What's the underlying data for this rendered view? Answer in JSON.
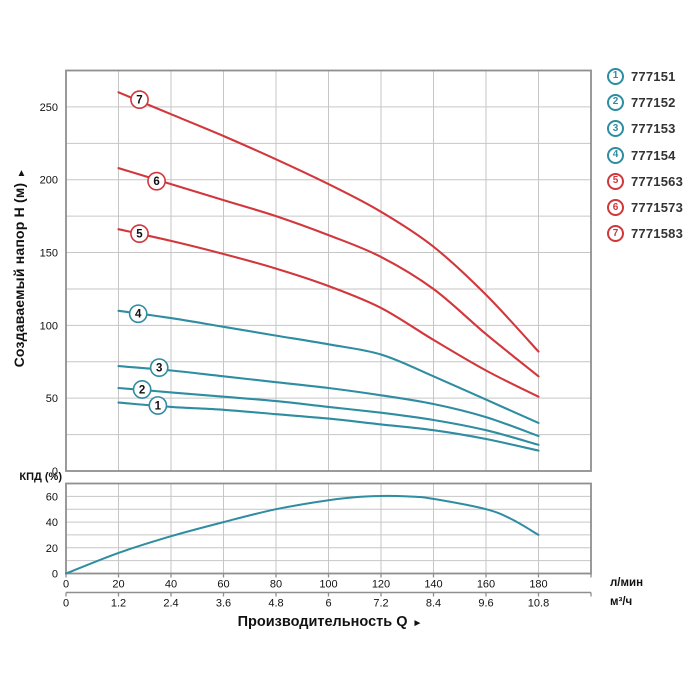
{
  "page": {
    "background": "#ffffff"
  },
  "colors": {
    "teal": "#2e8da1",
    "red": "#d2373c",
    "grid": "#c6c6c6",
    "axis": "#8f8f8f",
    "text": "#111111",
    "legend_text": "#333333"
  },
  "titles": {
    "y_main": "Создаваемый напор Н (м)",
    "y_main_arrow": "▲",
    "x_main": "Производительность Q",
    "x_main_arrow": "►",
    "eff": "КПД (%)"
  },
  "axis_units": {
    "flow_lmin": "л/мин",
    "flow_m3h": "м³/ч"
  },
  "legend": {
    "items": [
      {
        "num": "1",
        "label": "777151",
        "color": "teal"
      },
      {
        "num": "2",
        "label": "777152",
        "color": "teal"
      },
      {
        "num": "3",
        "label": "777153",
        "color": "teal"
      },
      {
        "num": "4",
        "label": "777154",
        "color": "teal"
      },
      {
        "num": "5",
        "label": "7771563",
        "color": "red"
      },
      {
        "num": "6",
        "label": "7771573",
        "color": "red"
      },
      {
        "num": "7",
        "label": "7771583",
        "color": "red"
      }
    ]
  },
  "chart_data": [
    {
      "id": "head-curves",
      "type": "line",
      "title": "",
      "xlabel": "Производительность Q",
      "ylabel": "Создаваемый напор Н (м)",
      "xlim": [
        0,
        200
      ],
      "ylim": [
        0,
        275
      ],
      "x_gridline_step": 20,
      "y_gridline_step": 25,
      "grid": true,
      "x_tick_values": [
        0,
        20,
        40,
        60,
        80,
        100,
        120,
        140,
        160,
        180
      ],
      "x_tick_labels_lmin": [
        "0",
        "20",
        "40",
        "60",
        "80",
        "100",
        "120",
        "140",
        "160",
        "180"
      ],
      "x_tick_labels_m3h": [
        "0",
        "1.2",
        "2.4",
        "3.6",
        "4.8",
        "6",
        "7.2",
        "8.4",
        "9.6",
        "10.8"
      ],
      "y_tick_values": [
        0,
        50,
        100,
        150,
        200,
        250
      ],
      "series": [
        {
          "name": "777151",
          "marker": "1",
          "color": "teal",
          "label_at": [
            35,
            45
          ],
          "points": [
            [
              20,
              47
            ],
            [
              40,
              44
            ],
            [
              60,
              42
            ],
            [
              80,
              39
            ],
            [
              100,
              36
            ],
            [
              120,
              32
            ],
            [
              140,
              28
            ],
            [
              160,
              22
            ],
            [
              180,
              14
            ]
          ]
        },
        {
          "name": "777152",
          "marker": "2",
          "color": "teal",
          "label_at": [
            29,
            56
          ],
          "points": [
            [
              20,
              57
            ],
            [
              40,
              54
            ],
            [
              60,
              51
            ],
            [
              80,
              48
            ],
            [
              100,
              44
            ],
            [
              120,
              40
            ],
            [
              140,
              35
            ],
            [
              160,
              28
            ],
            [
              180,
              18
            ]
          ]
        },
        {
          "name": "777153",
          "marker": "3",
          "color": "teal",
          "label_at": [
            35.5,
            71
          ],
          "points": [
            [
              20,
              72
            ],
            [
              40,
              69
            ],
            [
              60,
              65
            ],
            [
              80,
              61
            ],
            [
              100,
              57
            ],
            [
              120,
              52
            ],
            [
              140,
              46
            ],
            [
              160,
              37
            ],
            [
              180,
              24
            ]
          ]
        },
        {
          "name": "777154",
          "marker": "4",
          "color": "teal",
          "label_at": [
            27.5,
            108
          ],
          "points": [
            [
              20,
              110
            ],
            [
              40,
              105
            ],
            [
              60,
              99
            ],
            [
              80,
              93
            ],
            [
              100,
              87
            ],
            [
              120,
              80
            ],
            [
              140,
              65
            ],
            [
              160,
              49
            ],
            [
              180,
              33
            ]
          ]
        },
        {
          "name": "7771563",
          "marker": "5",
          "color": "red",
          "label_at": [
            28,
            163
          ],
          "points": [
            [
              20,
              166
            ],
            [
              40,
              158
            ],
            [
              60,
              149
            ],
            [
              80,
              139
            ],
            [
              100,
              127
            ],
            [
              120,
              112
            ],
            [
              140,
              90
            ],
            [
              160,
              69
            ],
            [
              180,
              51
            ]
          ]
        },
        {
          "name": "7771573",
          "marker": "6",
          "color": "red",
          "label_at": [
            34.5,
            199
          ],
          "points": [
            [
              20,
              208
            ],
            [
              40,
              197
            ],
            [
              60,
              186
            ],
            [
              80,
              175
            ],
            [
              100,
              162
            ],
            [
              120,
              147
            ],
            [
              140,
              125
            ],
            [
              160,
              94
            ],
            [
              180,
              65
            ]
          ]
        },
        {
          "name": "7771583",
          "marker": "7",
          "color": "red",
          "label_at": [
            28,
            255
          ],
          "points": [
            [
              20,
              260
            ],
            [
              40,
              245
            ],
            [
              60,
              230
            ],
            [
              80,
              214
            ],
            [
              100,
              197
            ],
            [
              120,
              178
            ],
            [
              140,
              154
            ],
            [
              160,
              121
            ],
            [
              180,
              82
            ]
          ]
        }
      ]
    },
    {
      "id": "efficiency",
      "type": "line",
      "title": "",
      "ylabel": "КПД (%)",
      "xlim": [
        0,
        200
      ],
      "ylim": [
        0,
        70
      ],
      "x_gridline_step": 20,
      "y_gridline_step": 10,
      "grid": true,
      "y_tick_values": [
        0,
        20,
        40,
        60
      ],
      "series": [
        {
          "name": "КПД",
          "color": "teal",
          "points": [
            [
              0,
              0
            ],
            [
              20,
              16
            ],
            [
              40,
              29
            ],
            [
              60,
              40
            ],
            [
              80,
              50
            ],
            [
              100,
              57
            ],
            [
              115,
              60
            ],
            [
              130,
              60
            ],
            [
              140,
              58
            ],
            [
              160,
              50
            ],
            [
              170,
              42
            ],
            [
              180,
              30
            ]
          ]
        }
      ]
    }
  ]
}
